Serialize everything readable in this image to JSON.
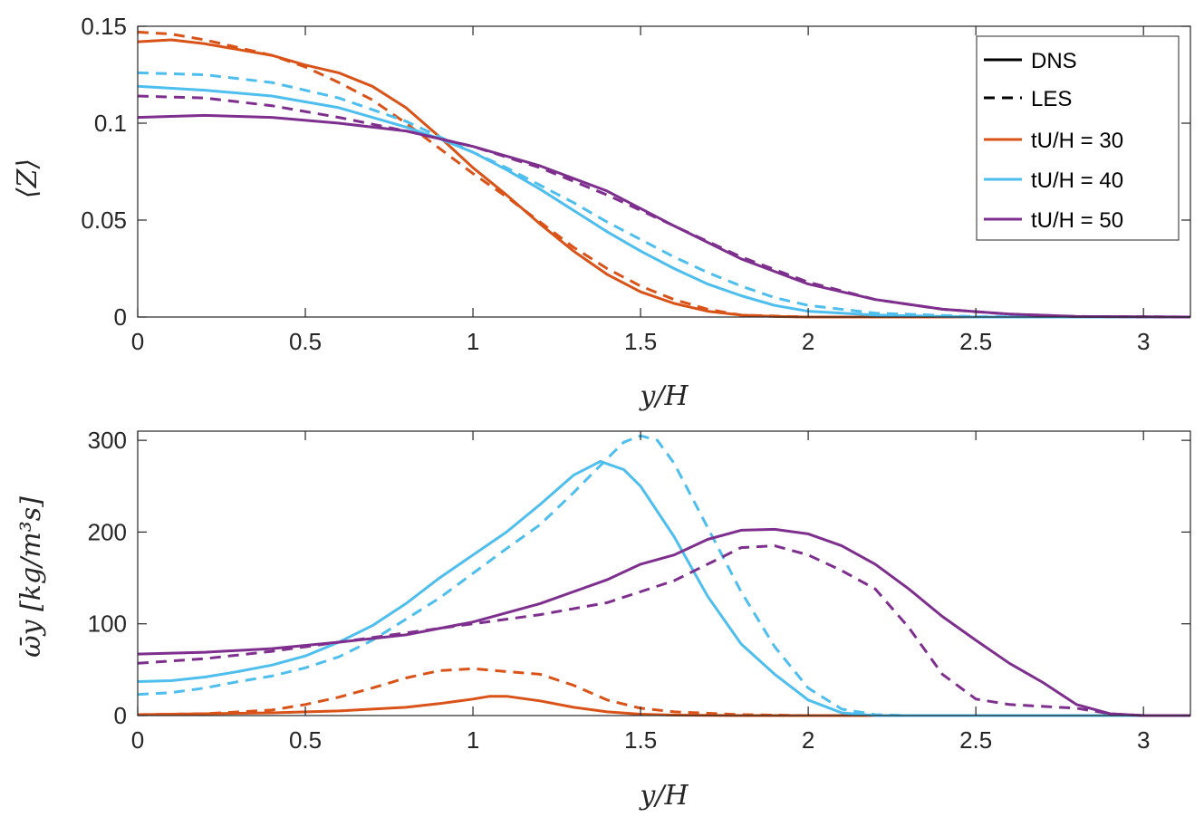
{
  "chart_data": [
    {
      "type": "line",
      "ylabel": "⟨Z⟩",
      "xlabel": "y/H",
      "xlim": [
        0,
        3.14
      ],
      "ylim": [
        0,
        0.15
      ],
      "xticks": [
        "0",
        "0.5",
        "1",
        "1.5",
        "2",
        "2.5",
        "3"
      ],
      "yticks": [
        "0",
        "0.05",
        "0.1",
        "0.15"
      ],
      "legend": {
        "position": "top-right",
        "entries": [
          "DNS",
          "LES",
          "tU/H = 30",
          "tU/H = 40",
          "tU/H = 50"
        ]
      },
      "series": [
        {
          "name": "DNS tU/H = 30",
          "color": "#D95319",
          "style": "solid",
          "x": [
            0,
            0.1,
            0.2,
            0.3,
            0.4,
            0.5,
            0.6,
            0.7,
            0.8,
            0.9,
            1.0,
            1.1,
            1.2,
            1.3,
            1.4,
            1.5,
            1.6,
            1.7,
            1.8,
            1.9,
            2.0,
            2.2,
            2.5,
            3.14
          ],
          "y": [
            0.142,
            0.143,
            0.141,
            0.138,
            0.135,
            0.13,
            0.126,
            0.119,
            0.108,
            0.093,
            0.077,
            0.063,
            0.048,
            0.034,
            0.022,
            0.013,
            0.007,
            0.003,
            0.001,
            0.0003,
            0,
            0,
            0,
            0
          ]
        },
        {
          "name": "LES tU/H = 30",
          "color": "#D95319",
          "style": "dashed",
          "x": [
            0,
            0.1,
            0.2,
            0.3,
            0.4,
            0.5,
            0.6,
            0.7,
            0.8,
            0.9,
            1.0,
            1.1,
            1.2,
            1.3,
            1.4,
            1.5,
            1.6,
            1.7,
            1.8,
            2.0,
            2.5,
            3.14
          ],
          "y": [
            0.147,
            0.146,
            0.143,
            0.139,
            0.135,
            0.129,
            0.121,
            0.112,
            0.1,
            0.087,
            0.074,
            0.062,
            0.049,
            0.036,
            0.025,
            0.016,
            0.009,
            0.004,
            0.001,
            0,
            0,
            0
          ]
        },
        {
          "name": "DNS tU/H = 40",
          "color": "#4DBEEE",
          "style": "solid",
          "x": [
            0,
            0.2,
            0.4,
            0.6,
            0.8,
            0.9,
            1.0,
            1.1,
            1.2,
            1.3,
            1.4,
            1.5,
            1.6,
            1.7,
            1.8,
            1.9,
            2.0,
            2.2,
            2.5,
            3.14
          ],
          "y": [
            0.119,
            0.117,
            0.114,
            0.108,
            0.098,
            0.092,
            0.085,
            0.076,
            0.066,
            0.055,
            0.044,
            0.034,
            0.025,
            0.017,
            0.011,
            0.006,
            0.003,
            0.001,
            0,
            0
          ]
        },
        {
          "name": "LES tU/H = 40",
          "color": "#4DBEEE",
          "style": "dashed",
          "x": [
            0,
            0.2,
            0.4,
            0.6,
            0.8,
            0.9,
            1.0,
            1.1,
            1.2,
            1.3,
            1.4,
            1.5,
            1.6,
            1.7,
            1.8,
            1.9,
            2.0,
            2.2,
            2.5,
            3.14
          ],
          "y": [
            0.126,
            0.125,
            0.121,
            0.113,
            0.101,
            0.093,
            0.085,
            0.077,
            0.068,
            0.059,
            0.049,
            0.04,
            0.031,
            0.023,
            0.016,
            0.01,
            0.006,
            0.002,
            0.0002,
            0
          ]
        },
        {
          "name": "DNS tU/H = 50",
          "color": "#7E2F8E",
          "style": "solid",
          "x": [
            0,
            0.2,
            0.4,
            0.6,
            0.8,
            1.0,
            1.2,
            1.4,
            1.6,
            1.8,
            2.0,
            2.2,
            2.4,
            2.6,
            2.8,
            3.14
          ],
          "y": [
            0.103,
            0.104,
            0.103,
            0.1,
            0.096,
            0.088,
            0.078,
            0.065,
            0.047,
            0.03,
            0.017,
            0.009,
            0.004,
            0.0015,
            0.0003,
            0
          ]
        },
        {
          "name": "LES tU/H = 50",
          "color": "#7E2F8E",
          "style": "dashed",
          "x": [
            0,
            0.2,
            0.4,
            0.6,
            0.8,
            1.0,
            1.2,
            1.4,
            1.6,
            1.8,
            2.0,
            2.2,
            2.4,
            2.6,
            2.8,
            3.14
          ],
          "y": [
            0.114,
            0.113,
            0.109,
            0.103,
            0.096,
            0.088,
            0.077,
            0.063,
            0.047,
            0.031,
            0.018,
            0.009,
            0.004,
            0.0015,
            0.0003,
            0
          ]
        }
      ]
    },
    {
      "type": "line",
      "ylabel": "ω̄y [kg/m³s]",
      "xlabel": "y/H",
      "xlim": [
        0,
        3.14
      ],
      "ylim": [
        0,
        310
      ],
      "xticks": [
        "0",
        "0.5",
        "1",
        "1.5",
        "2",
        "2.5",
        "3"
      ],
      "yticks": [
        "0",
        "100",
        "200",
        "300"
      ],
      "series": [
        {
          "name": "DNS tU/H = 30",
          "color": "#D95319",
          "style": "solid",
          "x": [
            0,
            0.2,
            0.4,
            0.6,
            0.8,
            0.9,
            1.0,
            1.05,
            1.1,
            1.2,
            1.3,
            1.4,
            1.5,
            1.6,
            1.8,
            2.0,
            3.14
          ],
          "y": [
            1,
            2,
            3,
            5,
            9,
            13,
            18,
            21,
            21,
            16,
            9,
            4,
            1.5,
            0.5,
            0,
            0,
            0
          ]
        },
        {
          "name": "LES tU/H = 30",
          "color": "#D95319",
          "style": "dashed",
          "x": [
            0,
            0.2,
            0.4,
            0.5,
            0.6,
            0.7,
            0.8,
            0.9,
            1.0,
            1.1,
            1.2,
            1.3,
            1.4,
            1.5,
            1.6,
            1.8,
            2.0,
            3.14
          ],
          "y": [
            1,
            2,
            6,
            12,
            20,
            30,
            41,
            49,
            51,
            48,
            45,
            33,
            17,
            8,
            4,
            1,
            0,
            0
          ]
        },
        {
          "name": "DNS tU/H = 40",
          "color": "#4DBEEE",
          "style": "solid",
          "x": [
            0,
            0.1,
            0.2,
            0.3,
            0.4,
            0.5,
            0.6,
            0.7,
            0.8,
            0.9,
            1.0,
            1.1,
            1.2,
            1.3,
            1.38,
            1.45,
            1.5,
            1.6,
            1.7,
            1.8,
            1.9,
            2.0,
            2.1,
            2.2,
            3.14
          ],
          "y": [
            37,
            38,
            42,
            48,
            55,
            65,
            80,
            98,
            122,
            150,
            175,
            200,
            230,
            262,
            277,
            268,
            250,
            195,
            130,
            78,
            45,
            17,
            3,
            0,
            0
          ]
        },
        {
          "name": "LES tU/H = 40",
          "color": "#4DBEEE",
          "style": "dashed",
          "x": [
            0,
            0.1,
            0.2,
            0.3,
            0.4,
            0.5,
            0.6,
            0.7,
            0.8,
            0.9,
            1.0,
            1.1,
            1.2,
            1.3,
            1.4,
            1.45,
            1.5,
            1.55,
            1.6,
            1.7,
            1.8,
            1.9,
            2.0,
            2.1,
            2.2,
            2.3,
            3.14
          ],
          "y": [
            23,
            25,
            30,
            37,
            43,
            52,
            64,
            82,
            105,
            128,
            155,
            182,
            208,
            243,
            280,
            298,
            305,
            300,
            275,
            205,
            135,
            75,
            30,
            7,
            1,
            0,
            0
          ]
        },
        {
          "name": "DNS tU/H = 50",
          "color": "#7E2F8E",
          "style": "solid",
          "x": [
            0,
            0.2,
            0.4,
            0.6,
            0.8,
            1.0,
            1.2,
            1.4,
            1.5,
            1.6,
            1.7,
            1.8,
            1.9,
            2.0,
            2.1,
            2.2,
            2.3,
            2.4,
            2.5,
            2.6,
            2.7,
            2.8,
            2.9,
            3.0,
            3.14
          ],
          "y": [
            67,
            69,
            73,
            80,
            88,
            102,
            122,
            148,
            165,
            175,
            192,
            202,
            203,
            198,
            185,
            165,
            138,
            108,
            82,
            57,
            36,
            12,
            2,
            0,
            0
          ]
        },
        {
          "name": "LES tU/H = 50",
          "color": "#7E2F8E",
          "style": "dashed",
          "x": [
            0,
            0.2,
            0.4,
            0.6,
            0.8,
            1.0,
            1.2,
            1.4,
            1.6,
            1.7,
            1.8,
            1.9,
            2.0,
            2.1,
            2.2,
            2.3,
            2.4,
            2.5,
            2.6,
            2.7,
            2.8,
            2.9,
            3.0,
            3.14
          ],
          "y": [
            57,
            62,
            70,
            80,
            90,
            100,
            110,
            123,
            147,
            165,
            183,
            185,
            175,
            158,
            138,
            96,
            45,
            18,
            12,
            10,
            8,
            2,
            0,
            0
          ]
        }
      ]
    }
  ]
}
